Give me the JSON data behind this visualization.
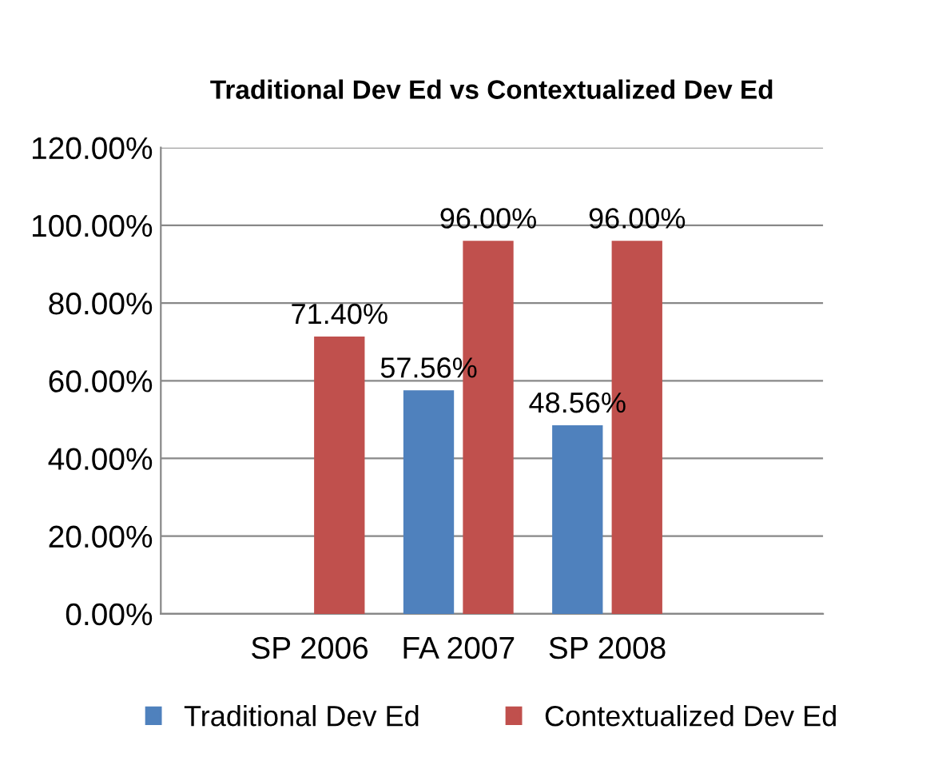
{
  "chart_data": {
    "type": "bar",
    "title": "Traditional Dev Ed vs Contextualized Dev Ed",
    "categories": [
      "SP 2006",
      "FA 2007",
      "SP 2008"
    ],
    "series": [
      {
        "name": "Traditional Dev Ed",
        "color": "#4f81bd",
        "values": [
          null,
          57.56,
          48.56
        ],
        "value_labels": [
          null,
          "57.56%",
          "48.56%"
        ]
      },
      {
        "name": "Contextualized Dev Ed",
        "color": "#c0504d",
        "values": [
          71.4,
          96.0,
          96.0
        ],
        "value_labels": [
          "71.40%",
          "96.00%",
          "96.00%"
        ]
      }
    ],
    "ylim": [
      0,
      120
    ],
    "yticks": [
      {
        "value": 0,
        "label": "0.00%"
      },
      {
        "value": 20,
        "label": "20.00%"
      },
      {
        "value": 40,
        "label": "40.00%"
      },
      {
        "value": 60,
        "label": "60.00%"
      },
      {
        "value": 80,
        "label": "80.00%"
      },
      {
        "value": 100,
        "label": "100.00%"
      },
      {
        "value": 120,
        "label": "120.00%"
      }
    ],
    "grid": "y",
    "legend": "bottom"
  }
}
